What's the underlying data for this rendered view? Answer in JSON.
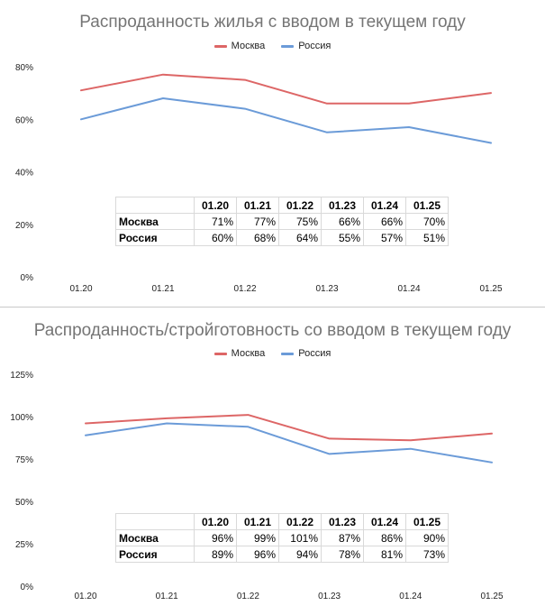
{
  "chart_data": [
    {
      "type": "line",
      "title": "Распроданность жилья с вводом в текущем году",
      "categories": [
        "01.20",
        "01.21",
        "01.22",
        "01.23",
        "01.24",
        "01.25"
      ],
      "series": [
        {
          "name": "Москва",
          "color": "#dd6666",
          "values": [
            71,
            77,
            75,
            66,
            66,
            70
          ]
        },
        {
          "name": "Россия",
          "color": "#6b9bd8",
          "values": [
            60,
            68,
            64,
            55,
            57,
            51
          ]
        }
      ],
      "y_ticks": [
        "0%",
        "20%",
        "40%",
        "60%",
        "80%"
      ],
      "ylim": [
        0,
        80
      ],
      "legend_position": "top",
      "grid": false,
      "table": {
        "header": [
          "01.20",
          "01.21",
          "01.22",
          "01.23",
          "01.24",
          "01.25"
        ],
        "rows": [
          {
            "label": "Москва",
            "cells": [
              "71%",
              "77%",
              "75%",
              "66%",
              "66%",
              "70%"
            ]
          },
          {
            "label": "Россия",
            "cells": [
              "60%",
              "68%",
              "64%",
              "55%",
              "57%",
              "51%"
            ]
          }
        ]
      }
    },
    {
      "type": "line",
      "title": "Распроданность/стройготовность со вводом в текущем году",
      "categories": [
        "01.20",
        "01.21",
        "01.22",
        "01.23",
        "01.24",
        "01.25"
      ],
      "series": [
        {
          "name": "Москва",
          "color": "#dd6666",
          "values": [
            96,
            99,
            101,
            87,
            86,
            90
          ]
        },
        {
          "name": "Россия",
          "color": "#6b9bd8",
          "values": [
            89,
            96,
            94,
            78,
            81,
            73
          ]
        }
      ],
      "y_ticks": [
        "0%",
        "25%",
        "50%",
        "75%",
        "100%",
        "125%"
      ],
      "ylim": [
        0,
        125
      ],
      "legend_position": "top",
      "grid": false,
      "table": {
        "header": [
          "01.20",
          "01.21",
          "01.22",
          "01.23",
          "01.24",
          "01.25"
        ],
        "rows": [
          {
            "label": "Москва",
            "cells": [
              "96%",
              "99%",
              "101%",
              "87%",
              "86%",
              "90%"
            ]
          },
          {
            "label": "Россия",
            "cells": [
              "89%",
              "96%",
              "94%",
              "78%",
              "81%",
              "73%"
            ]
          }
        ]
      }
    }
  ]
}
